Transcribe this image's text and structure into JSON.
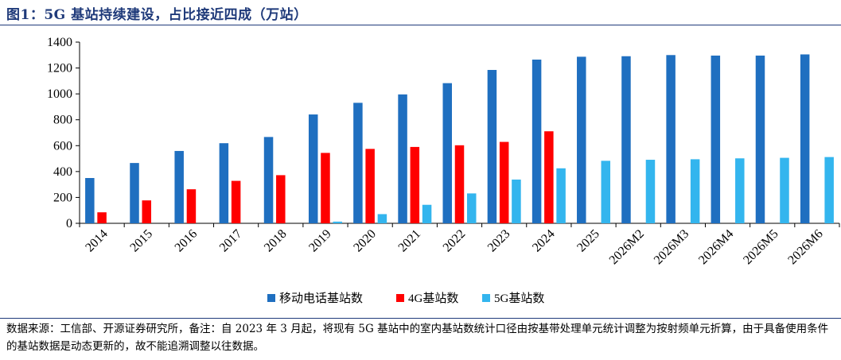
{
  "figure": {
    "title": "图1：5G 基站持续建设，占比接近四成（万站）",
    "note": "数据来源：工信部、开源证券研究所，备注：自 2023 年 3 月起，将现有 5G 基站中的室内基站数统计口径由按基带处理单元统计调整为按射频单元折算，由于具备使用条件的基站数据是动态更新的，故不能追溯调整以往数据。"
  },
  "colors": {
    "mobile": "#1f6fc0",
    "g4": "#ff0000",
    "g5": "#33b5ee",
    "rule": "#1f3a7a"
  },
  "chart_data": {
    "type": "bar",
    "title": "",
    "xlabel": "",
    "ylabel": "",
    "ylim": [
      0,
      1400
    ],
    "yticks": [
      0,
      200,
      400,
      600,
      800,
      1000,
      1200,
      1400
    ],
    "grid": false,
    "legend_position": "bottom",
    "categories": [
      "2014",
      "2015",
      "2016",
      "2017",
      "2018",
      "2019",
      "2020",
      "2021",
      "2022",
      "2023",
      "2024",
      "2025",
      "2026M2",
      "2026M3",
      "2026M4",
      "2026M5",
      "2026M6"
    ],
    "series": [
      {
        "name": "移动电话基站数",
        "color_key": "mobile",
        "values": [
          350,
          466,
          559,
          619,
          667,
          841,
          931,
          996,
          1083,
          1185,
          1265,
          1287,
          1291,
          1300,
          1296,
          1296,
          1305
        ]
      },
      {
        "name": "4G基站数",
        "color_key": "g4",
        "values": [
          85,
          177,
          263,
          328,
          372,
          544,
          575,
          590,
          603,
          629,
          711,
          null,
          null,
          null,
          null,
          null,
          null
        ]
      },
      {
        "name": "5G基站数",
        "color_key": "g5",
        "values": [
          null,
          null,
          null,
          null,
          null,
          13,
          71,
          143,
          231,
          338,
          425,
          483,
          491,
          495,
          502,
          506,
          512
        ]
      }
    ]
  }
}
